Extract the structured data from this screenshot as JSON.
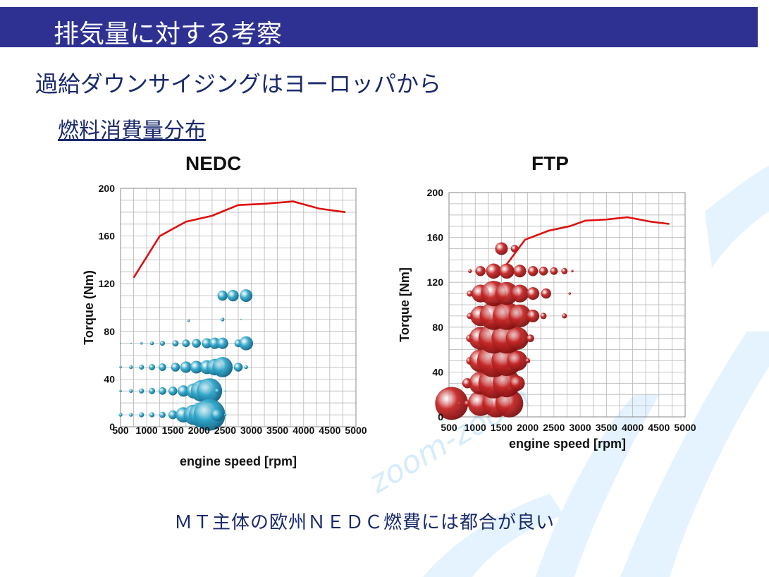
{
  "slide": {
    "title": "排気量に対する考察",
    "subtitle": "過給ダウンサイジングはヨーロッパから",
    "section": "燃料消費量分布",
    "footer": "ＭＴ主体の欧州ＮＥＤＣ燃費には都合が良い",
    "watermark_text": "zoom-zoom",
    "colors": {
      "header_bg": "#2e3192",
      "header_text": "#ffffff",
      "text": "#1a2a6c",
      "curve": "#dd1111",
      "nedc_bubble": "#33a9cc",
      "ftp_bubble": "#c62828"
    }
  },
  "chart_data": [
    {
      "type": "scatter",
      "title": "NEDC",
      "xlabel": "engine speed [rpm]",
      "ylabel": "Torque (Nm)",
      "xlim": [
        500,
        5000
      ],
      "ylim": [
        0,
        200
      ],
      "xticks": [
        500,
        1000,
        1500,
        2000,
        2500,
        3000,
        3500,
        4000,
        4500,
        5000
      ],
      "yticks": [
        0,
        40,
        80,
        120,
        160,
        200
      ],
      "grid": true,
      "max_torque_curve": {
        "x": [
          750,
          1250,
          1750,
          2250,
          2750,
          3250,
          3800,
          4300,
          4800
        ],
        "y": [
          125,
          160,
          172,
          177,
          186,
          187,
          189,
          183,
          180
        ]
      },
      "bubbles": {
        "x": [
          500,
          700,
          900,
          1100,
          1300,
          1550,
          1750,
          1950,
          2150,
          2300,
          2450,
          2750,
          2900,
          500,
          700,
          900,
          1100,
          1300,
          1550,
          1750,
          1950,
          2150,
          2300,
          2450,
          2750,
          2900,
          500,
          700,
          900,
          1100,
          1300,
          1500,
          1700,
          1900,
          2050,
          2200,
          2350,
          2500,
          500,
          700,
          900,
          1100,
          1300,
          1500,
          1700,
          1900,
          2050,
          2200,
          2350,
          2500,
          2450,
          2800,
          2450,
          2650,
          2900,
          1800
        ],
        "y": [
          70,
          70,
          70,
          70,
          70,
          70,
          70,
          70,
          70,
          70,
          70,
          70,
          70,
          50,
          50,
          50,
          50,
          50,
          50,
          50,
          50,
          50,
          50,
          50,
          50,
          50,
          30,
          30,
          30,
          30,
          30,
          30,
          30,
          30,
          30,
          30,
          30,
          30,
          10,
          10,
          10,
          10,
          10,
          10,
          10,
          10,
          10,
          10,
          10,
          10,
          90,
          90,
          110,
          110,
          110,
          89
        ],
        "size": [
          0.5,
          1,
          2,
          3,
          4,
          5,
          6,
          7,
          8,
          9,
          9,
          6,
          11,
          2,
          3,
          4,
          5,
          6,
          7,
          9,
          10,
          11,
          13,
          16,
          7,
          3,
          2,
          3,
          4,
          5,
          6,
          7,
          9,
          12,
          17,
          20,
          4,
          1,
          3,
          3,
          4,
          4,
          5,
          7,
          12,
          16,
          20,
          25,
          10,
          2,
          3,
          1,
          8,
          9,
          10,
          2
        ]
      }
    },
    {
      "type": "scatter",
      "title": "FTP",
      "xlabel": "engine speed [rpm]",
      "ylabel": "Torque [Nm]",
      "xlim": [
        500,
        5000
      ],
      "ylim": [
        0,
        200
      ],
      "xticks": [
        500,
        1000,
        1500,
        2000,
        2500,
        3000,
        3500,
        4000,
        4500,
        5000
      ],
      "yticks": [
        0,
        40,
        80,
        120,
        160,
        200
      ],
      "grid": true,
      "max_torque_curve": {
        "x": [
          1600,
          1950,
          2400,
          2800,
          3100,
          3500,
          3900,
          4350,
          4700
        ],
        "y": [
          136,
          158,
          166,
          170,
          175,
          176,
          178,
          174,
          172
        ]
      },
      "bubbles": {
        "x": [
          550,
          700,
          850,
          1100,
          1400,
          1650,
          850,
          1100,
          1350,
          1600,
          1800,
          900,
          1100,
          1350,
          1600,
          1800,
          2000,
          900,
          1100,
          1350,
          1600,
          1800,
          2050,
          900,
          1100,
          1350,
          1600,
          1850,
          2100,
          2300,
          2700,
          900,
          1100,
          1350,
          1600,
          1850,
          2100,
          2350,
          2800,
          900,
          1100,
          1350,
          1600,
          1850,
          2100,
          2300,
          2500,
          2700,
          2850,
          1500,
          1750
        ],
        "y": [
          12,
          12,
          12,
          12,
          12,
          12,
          30,
          30,
          30,
          30,
          30,
          50,
          50,
          50,
          50,
          50,
          50,
          70,
          70,
          70,
          70,
          70,
          70,
          90,
          90,
          90,
          90,
          90,
          90,
          90,
          90,
          110,
          110,
          110,
          110,
          110,
          110,
          110,
          110,
          130,
          130,
          130,
          130,
          130,
          130,
          130,
          130,
          130,
          130,
          150,
          150
        ],
        "size": [
          26,
          2,
          5,
          20,
          22,
          22,
          8,
          18,
          24,
          22,
          12,
          6,
          18,
          26,
          24,
          16,
          4,
          6,
          18,
          24,
          24,
          18,
          6,
          5,
          16,
          22,
          22,
          18,
          10,
          5,
          4,
          5,
          14,
          20,
          18,
          14,
          10,
          8,
          2,
          3,
          8,
          12,
          12,
          10,
          8,
          7,
          6,
          5,
          2,
          10,
          6
        ]
      }
    }
  ]
}
